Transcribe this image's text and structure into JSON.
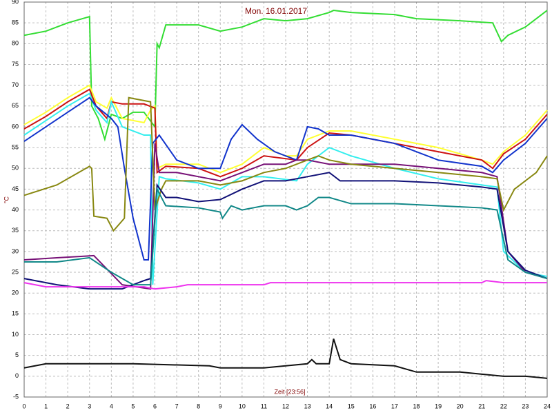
{
  "chart_data": {
    "type": "line",
    "title": "Mon. 16.01.2017",
    "x_label": "Zeit [23:56]",
    "y_label": "°C",
    "xlim": [
      0,
      24
    ],
    "xticks": [
      0,
      1,
      2,
      3,
      4,
      5,
      6,
      7,
      8,
      9,
      10,
      11,
      12,
      13,
      14,
      15,
      16,
      17,
      18,
      19,
      20,
      21,
      22,
      23,
      24
    ],
    "ylim": [
      -5,
      90
    ],
    "yticks": [
      -5,
      0,
      5,
      10,
      15,
      20,
      25,
      30,
      35,
      40,
      45,
      50,
      55,
      60,
      65,
      70,
      75,
      80,
      85,
      90
    ],
    "grid": true,
    "series": [
      {
        "color": "#33dd33",
        "x": [
          0,
          1,
          2,
          3,
          3.1,
          3.4,
          3.7,
          4.0,
          4.5,
          5.0,
          5.5,
          6.0,
          6.1,
          6.2,
          6.5,
          8,
          9,
          10,
          11,
          12,
          13,
          14,
          14.2,
          15,
          17,
          18,
          20,
          21.5,
          21.9,
          22.2,
          23,
          24
        ],
        "values": [
          82,
          83,
          85,
          86.5,
          65,
          62,
          57,
          63,
          62,
          63.5,
          63.5,
          60,
          80,
          79,
          84.5,
          84.5,
          83,
          84,
          86,
          85.5,
          86,
          87.5,
          88,
          87.5,
          87,
          86,
          85.5,
          85,
          80.5,
          82,
          84,
          88
        ]
      },
      {
        "color": "#ffff33",
        "x": [
          0,
          1,
          2,
          3,
          3.3,
          3.8,
          4.0,
          4.5,
          5.5,
          5.8,
          6.0,
          6.1,
          6.5,
          8,
          9,
          10,
          11,
          12,
          12.5,
          13,
          14,
          15,
          17,
          19,
          21,
          21.5,
          22,
          23,
          24
        ],
        "values": [
          60.5,
          63.5,
          67,
          70,
          66,
          64.5,
          67,
          62,
          61,
          64,
          65,
          50,
          51,
          51,
          49,
          51,
          55,
          53,
          53,
          57,
          59,
          59,
          57,
          55,
          52,
          51,
          54,
          58,
          64
        ]
      },
      {
        "color": "#cc1111",
        "x": [
          0,
          1,
          2,
          3,
          3.3,
          3.8,
          4.0,
          4.5,
          5.5,
          6.0,
          6.1,
          6.5,
          8,
          9,
          10,
          11,
          12.5,
          13,
          14,
          15,
          17,
          19,
          21,
          21.5,
          22,
          23,
          24
        ],
        "values": [
          59.5,
          62.5,
          66,
          69,
          65,
          62,
          66,
          65.5,
          65.5,
          64.5,
          49,
          50.5,
          50,
          48,
          50,
          53,
          52,
          55,
          58.5,
          58,
          56,
          54,
          52,
          50,
          53.5,
          57,
          63
        ]
      },
      {
        "color": "#33eeee",
        "x": [
          0,
          1,
          2,
          3,
          3.3,
          3.8,
          4.0,
          4.5,
          5.5,
          5.8,
          5.9,
          6.2,
          6.5,
          8,
          9,
          10,
          11,
          12.5,
          13,
          14,
          15,
          17,
          19,
          21,
          21.7,
          22,
          23,
          24
        ],
        "values": [
          58,
          61.5,
          65,
          68,
          64,
          61,
          66,
          60,
          58,
          58,
          22,
          48,
          47.5,
          46.5,
          45,
          48,
          48,
          47,
          51,
          55,
          53,
          50,
          47.5,
          46,
          45.5,
          30,
          25,
          24
        ]
      },
      {
        "color": "#1133cc",
        "x": [
          0,
          1,
          2,
          3,
          3.3,
          4.0,
          4.3,
          4.6,
          5.0,
          5.5,
          5.7,
          5.9,
          6.2,
          7,
          8,
          9,
          9.5,
          10,
          10.7,
          11.5,
          12.5,
          13,
          13.5,
          14,
          15,
          17,
          19,
          21,
          21.5,
          22,
          23,
          24
        ],
        "values": [
          56.5,
          60,
          63.5,
          67,
          65,
          62,
          60,
          50,
          38,
          28,
          28,
          56,
          58,
          52,
          50,
          50,
          57,
          60.5,
          57,
          54,
          52,
          60,
          59.5,
          58,
          58,
          56,
          52,
          50.5,
          49,
          52,
          56,
          62
        ]
      },
      {
        "color": "#771177",
        "x": [
          0,
          1.5,
          3.2,
          4.5,
          5.8,
          6.0,
          6.2,
          7,
          8,
          9,
          10,
          11,
          12,
          12.5,
          13,
          14,
          15,
          17,
          19,
          21,
          21.7,
          22.2,
          23,
          24
        ],
        "values": [
          28,
          28.5,
          29,
          22,
          21,
          56,
          49,
          49,
          48,
          47,
          49,
          51,
          51,
          52,
          52,
          51,
          51,
          51,
          50,
          49,
          48,
          30,
          25,
          23.5
        ]
      },
      {
        "color": "#888811",
        "x": [
          0,
          1.5,
          3,
          3.1,
          3.2,
          3.8,
          4.1,
          4.6,
          4.8,
          5.8,
          6.0,
          6.3,
          6.5,
          8,
          9,
          10,
          11,
          12,
          13,
          13.5,
          14,
          15,
          17,
          19,
          21,
          21.7,
          22,
          22.5,
          23.5,
          24
        ],
        "values": [
          43.5,
          46,
          50.5,
          50,
          38.5,
          38,
          35,
          38,
          67,
          66,
          40,
          45,
          47,
          47,
          46,
          47,
          49,
          50,
          52,
          53,
          52,
          51,
          50,
          49,
          48,
          47.5,
          40,
          45,
          49,
          53
        ]
      },
      {
        "color": "#111177",
        "x": [
          0,
          1.5,
          3,
          4.5,
          5.5,
          5.8,
          6.1,
          6.5,
          7,
          8,
          9,
          10,
          11,
          12,
          13,
          14,
          14.5,
          17,
          19,
          21,
          21.7,
          22.2,
          23,
          24
        ],
        "values": [
          23.5,
          22,
          21,
          21,
          23,
          23.5,
          46,
          43,
          43,
          42,
          42.5,
          45,
          47,
          47,
          48,
          49,
          47,
          47,
          46.5,
          45.5,
          45,
          30,
          25.5,
          23.5
        ]
      },
      {
        "color": "#118888",
        "x": [
          0,
          1.5,
          3,
          4,
          5,
          5.8,
          6.1,
          6.5,
          8,
          9,
          9.1,
          9.5,
          10,
          11,
          12,
          12.5,
          13,
          13.5,
          14,
          15,
          17,
          19,
          21,
          21.7,
          22.2,
          23,
          24
        ],
        "values": [
          27.5,
          27.5,
          28.5,
          25,
          22,
          22,
          45,
          41,
          40.5,
          39.5,
          38,
          41,
          40,
          41,
          41,
          40,
          41,
          43,
          43,
          41.5,
          41.5,
          41,
          40.5,
          40,
          28,
          25,
          23.5
        ]
      },
      {
        "color": "#ee33ee",
        "x": [
          0,
          1,
          5.5,
          6,
          7,
          7.5,
          11,
          11.3,
          21,
          21.2,
          22,
          24
        ],
        "values": [
          22.5,
          21.5,
          21.5,
          21,
          21.5,
          22,
          22,
          22.5,
          22.5,
          23,
          22.5,
          22.5
        ]
      },
      {
        "color": "#111111",
        "x": [
          0,
          1,
          3,
          5,
          8.5,
          9,
          11,
          12,
          13,
          13.2,
          13.4,
          14,
          14.2,
          14.5,
          15,
          17,
          18,
          20,
          21,
          22,
          23,
          24
        ],
        "values": [
          2,
          3,
          3,
          3,
          2.5,
          2,
          2,
          2.5,
          3,
          4,
          3,
          3,
          9,
          4,
          3,
          2.5,
          1,
          1,
          0.5,
          0,
          0,
          -0.5
        ]
      }
    ]
  }
}
